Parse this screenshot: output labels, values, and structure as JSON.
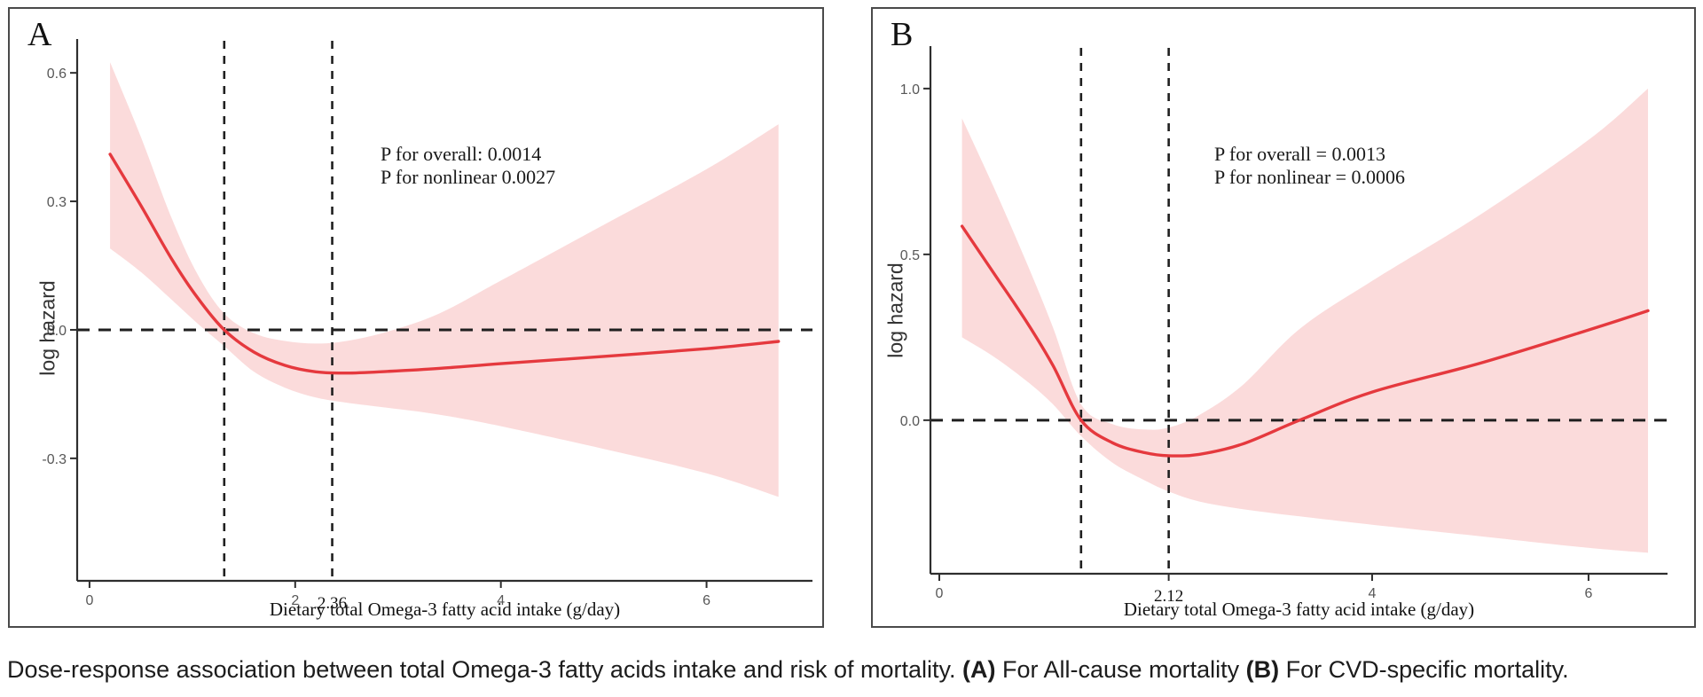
{
  "caption": {
    "text": "Dose-response association between total Omega-3 fatty acids intake and risk of mortality. ",
    "a_label": "(A)",
    "a_text": " For All-cause mortality ",
    "b_label": "(B)",
    "b_text": " For CVD-specific mortality."
  },
  "colors": {
    "line": "#e5393e",
    "band": "#fbdbdb",
    "dash": "#1f1f1f",
    "axis": "#2e2e2e",
    "tick_text": "#575757"
  },
  "chart_data": [
    {
      "id": "A",
      "type": "line",
      "panel_label": "A",
      "subtitle": "All-cause mortality",
      "xlabel": "Dietary total Omega-3 fatty acid intake (g/day)",
      "ylabel": "log hazard",
      "annotation_lines": [
        "P for overall: 0.0014",
        "P for nonlinear 0.0027"
      ],
      "xlim": [
        -0.12,
        7.03
      ],
      "ylim": [
        -0.586,
        0.679
      ],
      "x_ticks": [
        {
          "v": 0,
          "label": "0"
        },
        {
          "v": 2,
          "label": "2"
        },
        {
          "v": 4,
          "label": "4"
        },
        {
          "v": 6,
          "label": "6"
        }
      ],
      "y_ticks": [
        {
          "v": 0.6,
          "label": "0.6"
        },
        {
          "v": 0.3,
          "label": "0.3"
        },
        {
          "v": 0.0,
          "label": "0.0"
        },
        {
          "v": -0.3,
          "label": "-0.3"
        }
      ],
      "hline": 0.0,
      "vlines": [
        1.31,
        2.36
      ],
      "vline_label": {
        "v": 2.36,
        "label": "2.36"
      },
      "grid": false,
      "legend": false,
      "series": {
        "x": [
          0.2,
          0.5,
          0.8,
          1.05,
          1.31,
          1.6,
          1.9,
          2.2,
          2.5,
          2.9,
          3.4,
          4.0,
          5.0,
          6.0,
          6.7
        ],
        "est": [
          0.41,
          0.29,
          0.165,
          0.075,
          0.0,
          -0.052,
          -0.083,
          -0.098,
          -0.101,
          -0.097,
          -0.09,
          -0.079,
          -0.062,
          -0.044,
          -0.027
        ],
        "hi": [
          0.625,
          0.45,
          0.26,
          0.13,
          0.038,
          -0.008,
          -0.026,
          -0.032,
          -0.026,
          -0.004,
          0.038,
          0.115,
          0.245,
          0.375,
          0.48
        ],
        "lo": [
          0.19,
          0.135,
          0.07,
          0.015,
          -0.038,
          -0.098,
          -0.135,
          -0.158,
          -0.17,
          -0.182,
          -0.198,
          -0.225,
          -0.278,
          -0.335,
          -0.39
        ]
      }
    },
    {
      "id": "B",
      "type": "line",
      "panel_label": "B",
      "subtitle": "CVD-specific mortality",
      "xlabel": "Dietary total Omega-3 fatty acid intake (g/day)",
      "ylabel": "log hazard",
      "annotation_lines": [
        "P for overall = 0.0013",
        "P for nonlinear = 0.0006"
      ],
      "xlim": [
        -0.082,
        6.73
      ],
      "ylim": [
        -0.463,
        1.128
      ],
      "x_ticks": [
        {
          "v": 0,
          "label": "0"
        },
        {
          "v": 2.12,
          "label": ""
        },
        {
          "v": 4,
          "label": "4"
        },
        {
          "v": 6,
          "label": "6"
        }
      ],
      "y_ticks": [
        {
          "v": 1.0,
          "label": "1.0"
        },
        {
          "v": 0.5,
          "label": "0.5"
        },
        {
          "v": 0.0,
          "label": "0.0"
        }
      ],
      "hline": 0.0,
      "vlines": [
        1.31,
        2.12
      ],
      "vline_label": {
        "v": 2.12,
        "label": "2.12"
      },
      "grid": false,
      "legend": false,
      "series": {
        "x": [
          0.21,
          0.5,
          0.8,
          1.05,
          1.31,
          1.6,
          1.9,
          2.12,
          2.4,
          2.8,
          3.33,
          4.0,
          5.0,
          6.0,
          6.55
        ],
        "est": [
          0.585,
          0.445,
          0.3,
          0.165,
          0.0,
          -0.068,
          -0.098,
          -0.107,
          -0.103,
          -0.072,
          0.0,
          0.085,
          0.172,
          0.272,
          0.33
        ],
        "hi": [
          0.91,
          0.705,
          0.48,
          0.28,
          0.048,
          -0.012,
          -0.028,
          -0.022,
          0.015,
          0.105,
          0.275,
          0.42,
          0.62,
          0.845,
          1.0
        ],
        "lo": [
          0.25,
          0.192,
          0.12,
          0.048,
          -0.048,
          -0.128,
          -0.182,
          -0.215,
          -0.245,
          -0.268,
          -0.29,
          -0.315,
          -0.35,
          -0.385,
          -0.4
        ]
      }
    }
  ]
}
